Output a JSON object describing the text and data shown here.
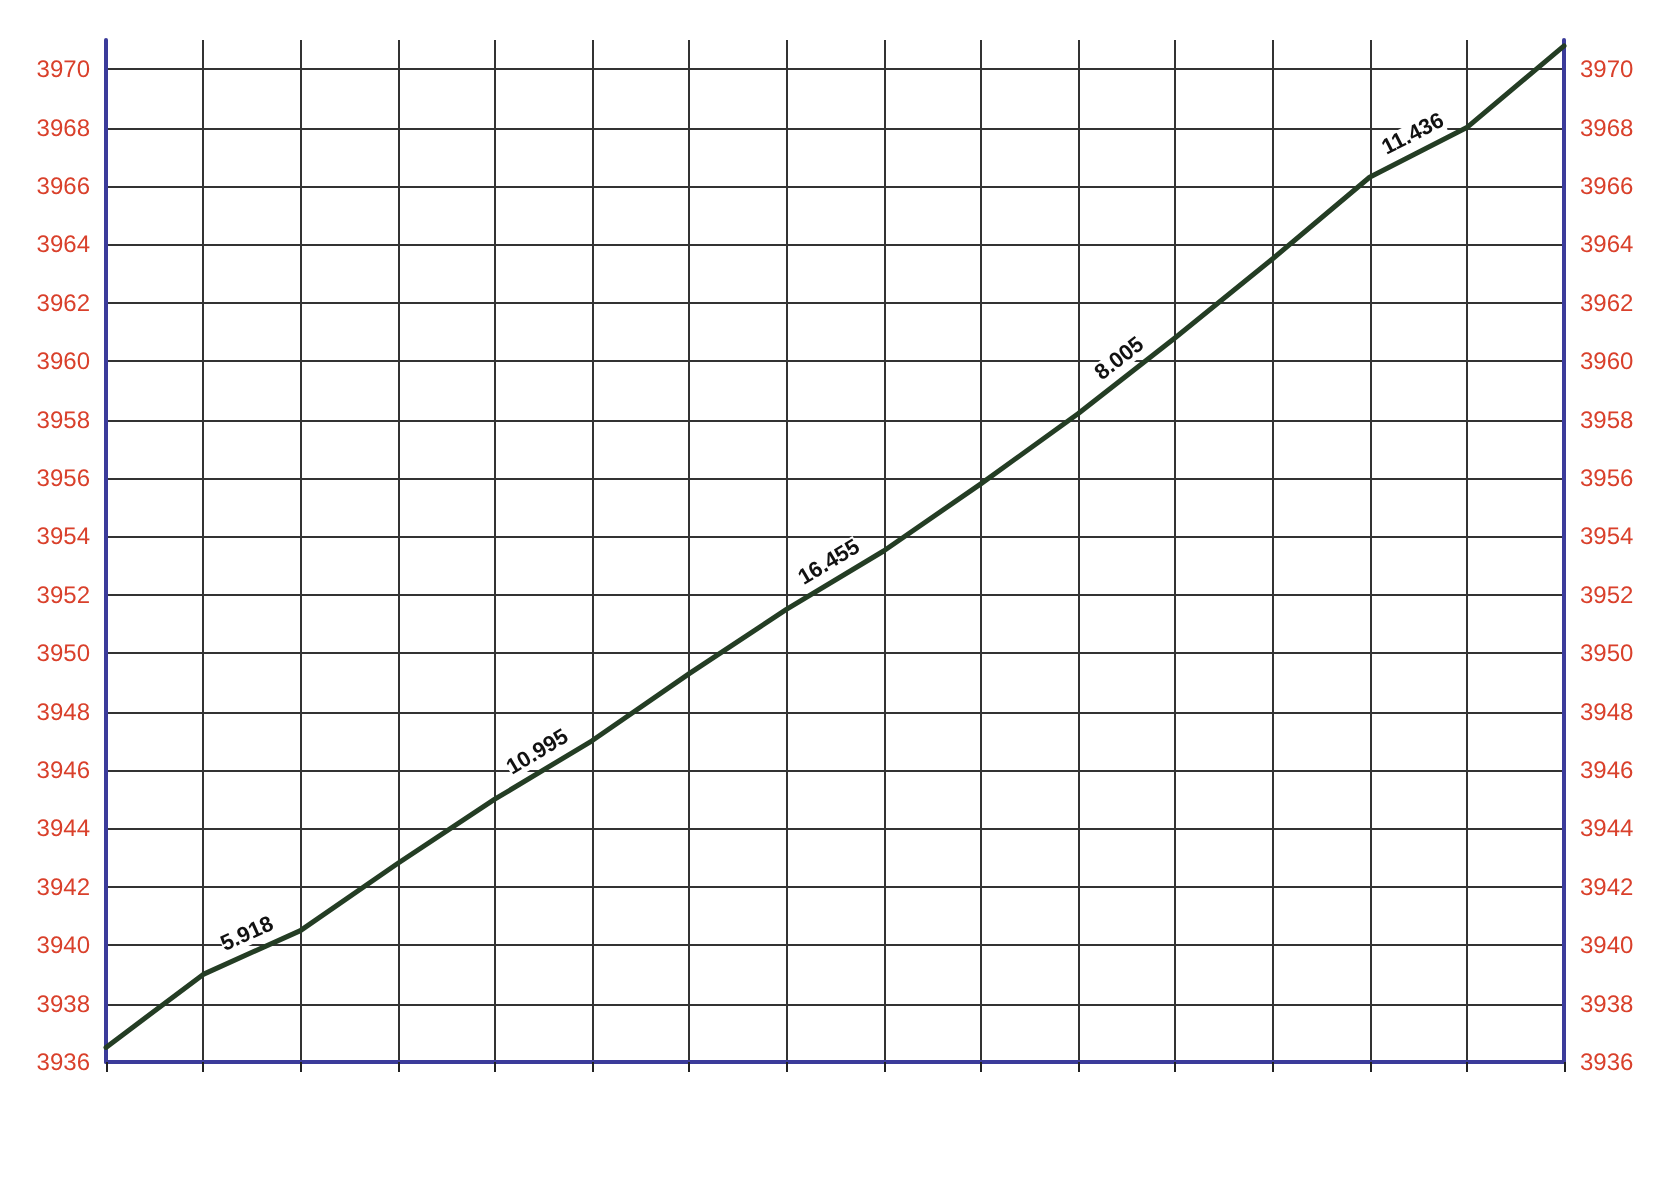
{
  "chart_data": {
    "type": "line",
    "categories": [
      null,
      null,
      null,
      null,
      null,
      null,
      null,
      null,
      null,
      null,
      null,
      null,
      null,
      null,
      null,
      null
    ],
    "series": [
      {
        "color": "#243d24",
        "values": [
          3936.5,
          3939.0,
          3940.5,
          3942.8,
          3945.0,
          3947.0,
          3949.3,
          3951.5,
          3953.5,
          3955.8,
          3958.2,
          3960.8,
          3963.5,
          3966.3,
          3968.0,
          3970.8
        ]
      }
    ],
    "ylim": [
      3936,
      3971
    ],
    "yticks": [
      3936,
      3938,
      3940,
      3942,
      3944,
      3946,
      3948,
      3950,
      3952,
      3954,
      3956,
      3958,
      3960,
      3962,
      3964,
      3966,
      3968,
      3970
    ],
    "y2lim": [
      3936,
      3971
    ],
    "y2ticks": [
      3936,
      3938,
      3940,
      3942,
      3944,
      3946,
      3948,
      3950,
      3952,
      3954,
      3956,
      3958,
      3960,
      3962,
      3964,
      3966,
      3968,
      3970
    ],
    "annotations": [
      "5.918",
      "10.995",
      "16.455",
      "8.005",
      "11.436"
    ],
    "grid": true,
    "marker": "none",
    "line_style": "solid"
  }
}
